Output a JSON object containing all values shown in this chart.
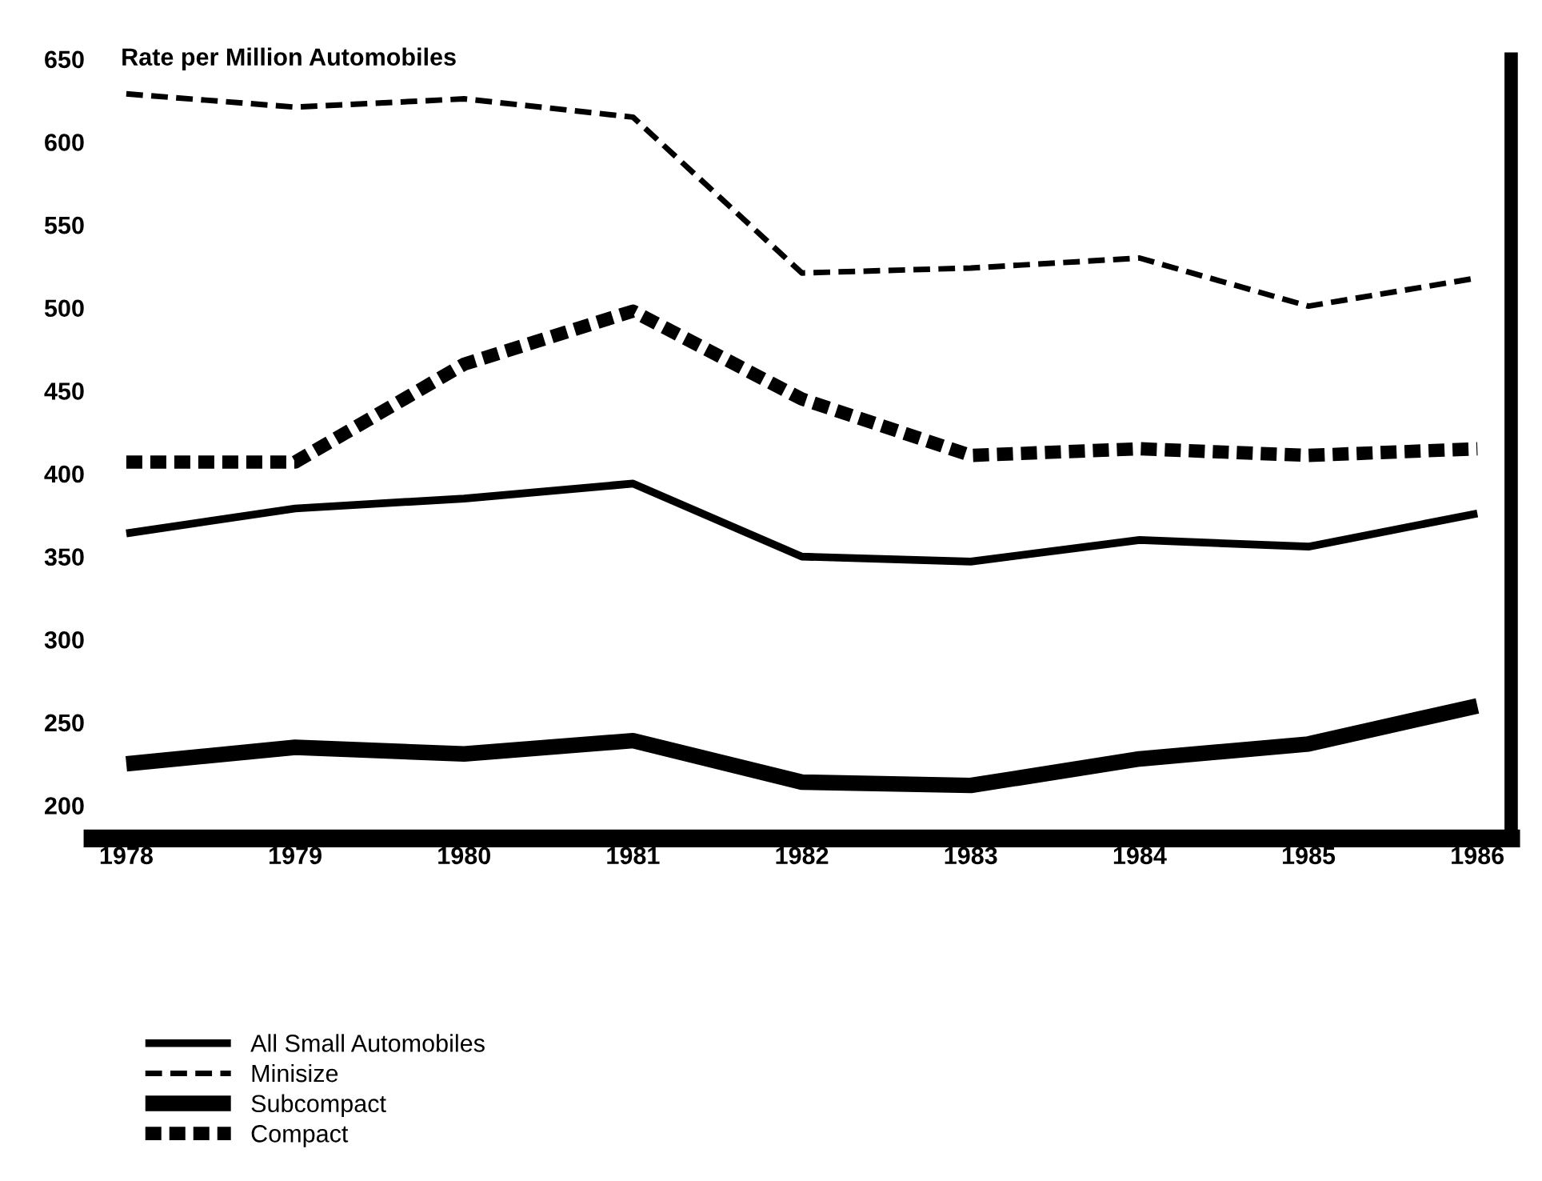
{
  "chart_data": {
    "type": "line",
    "ylabel": "Rate per Million Automobiles",
    "x": [
      1978,
      1979,
      1980,
      1981,
      1982,
      1983,
      1984,
      1985,
      1986
    ],
    "series": [
      {
        "name": "All Small Automobiles",
        "color": "#000000",
        "line_style": "solid",
        "values": [
          364,
          379,
          385,
          394,
          350,
          347,
          360,
          356,
          376
        ]
      },
      {
        "name": "Minisize",
        "color": "#000000",
        "line_style": "dashed",
        "values": [
          629,
          621,
          626,
          615,
          521,
          524,
          530,
          501,
          518
        ]
      },
      {
        "name": "Subcompact",
        "color": "#000000",
        "line_style": "solid",
        "values": [
          225,
          235,
          231,
          239,
          214,
          212,
          228,
          237,
          260
        ]
      },
      {
        "name": "Compact",
        "color": "#000000",
        "line_style": "dotted",
        "values": [
          407,
          407,
          466,
          498,
          445,
          411,
          415,
          411,
          415
        ]
      }
    ],
    "xlim": [
      1977.8,
      1986.2
    ],
    "ylim": [
      180,
      650
    ],
    "xticks": [
      1978,
      1979,
      1980,
      1981,
      1982,
      1983,
      1984,
      1985,
      1986
    ],
    "yticks": [
      200,
      250,
      300,
      350,
      400,
      450,
      500,
      550,
      600,
      650
    ],
    "grid": false,
    "legend": "bottom left",
    "marker": "none"
  }
}
